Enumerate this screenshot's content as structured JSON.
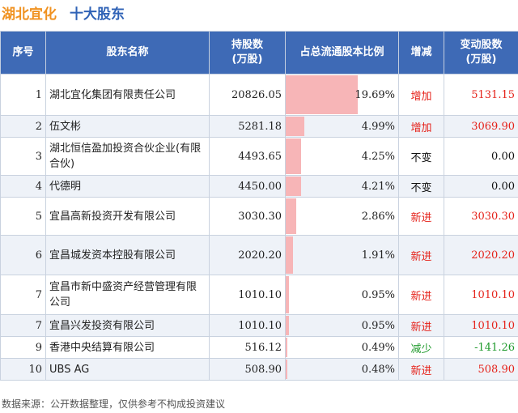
{
  "header": {
    "stock_name": "湖北宜化",
    "section_title": "十大股东"
  },
  "columns": [
    "序号",
    "股东名称",
    "持股数\n(万股)",
    "占总流通股本比例",
    "增减",
    "变动股数\n(万股)"
  ],
  "chart_data": {
    "type": "table",
    "bar_column": "占总流通股本比例",
    "bar_max_percent": 19.69,
    "rows": [
      {
        "rank": "1",
        "name": "湖北宜化集团有限责任公司",
        "shares": "20826.05",
        "ratio": 19.69,
        "ratio_text": "19.69%",
        "change_type": "增加",
        "change_color": "#e5221a",
        "change_amount": "5131.15"
      },
      {
        "rank": "2",
        "name": "伍文彬",
        "shares": "5281.18",
        "ratio": 4.99,
        "ratio_text": "4.99%",
        "change_type": "增加",
        "change_color": "#e5221a",
        "change_amount": "3069.90"
      },
      {
        "rank": "3",
        "name": "湖北恒信盈加投资合伙企业(有限合伙)",
        "shares": "4493.65",
        "ratio": 4.25,
        "ratio_text": "4.25%",
        "change_type": "不变",
        "change_color": "#111111",
        "change_amount": "0.00"
      },
      {
        "rank": "4",
        "name": "代德明",
        "shares": "4450.00",
        "ratio": 4.21,
        "ratio_text": "4.21%",
        "change_type": "不变",
        "change_color": "#111111",
        "change_amount": "0.00"
      },
      {
        "rank": "5",
        "name": "宜昌高新投资开发有限公司",
        "shares": "3030.30",
        "ratio": 2.86,
        "ratio_text": "2.86%",
        "change_type": "新进",
        "change_color": "#e5221a",
        "change_amount": "3030.30"
      },
      {
        "rank": "6",
        "name": "宜昌城发资本控股有限公司",
        "shares": "2020.20",
        "ratio": 1.91,
        "ratio_text": "1.91%",
        "change_type": "新进",
        "change_color": "#e5221a",
        "change_amount": "2020.20"
      },
      {
        "rank": "7",
        "name": "宜昌市新中盛资产经营管理有限公司",
        "shares": "1010.10",
        "ratio": 0.95,
        "ratio_text": "0.95%",
        "change_type": "新进",
        "change_color": "#e5221a",
        "change_amount": "1010.10"
      },
      {
        "rank": "7",
        "name": "宜昌兴发投资有限公司",
        "shares": "1010.10",
        "ratio": 0.95,
        "ratio_text": "0.95%",
        "change_type": "新进",
        "change_color": "#e5221a",
        "change_amount": "1010.10"
      },
      {
        "rank": "9",
        "name": "香港中央结算有限公司",
        "shares": "516.12",
        "ratio": 0.49,
        "ratio_text": "0.49%",
        "change_type": "减少",
        "change_color": "#1f9a2c",
        "change_amount": "-141.26"
      },
      {
        "rank": "10",
        "name": "UBS AG",
        "shares": "508.90",
        "ratio": 0.48,
        "ratio_text": "0.48%",
        "change_type": "新进",
        "change_color": "#e5221a",
        "change_amount": "508.90"
      }
    ]
  },
  "footer": {
    "source": "数据来源：公开数据整理，仅供参考不构成投资建议"
  }
}
